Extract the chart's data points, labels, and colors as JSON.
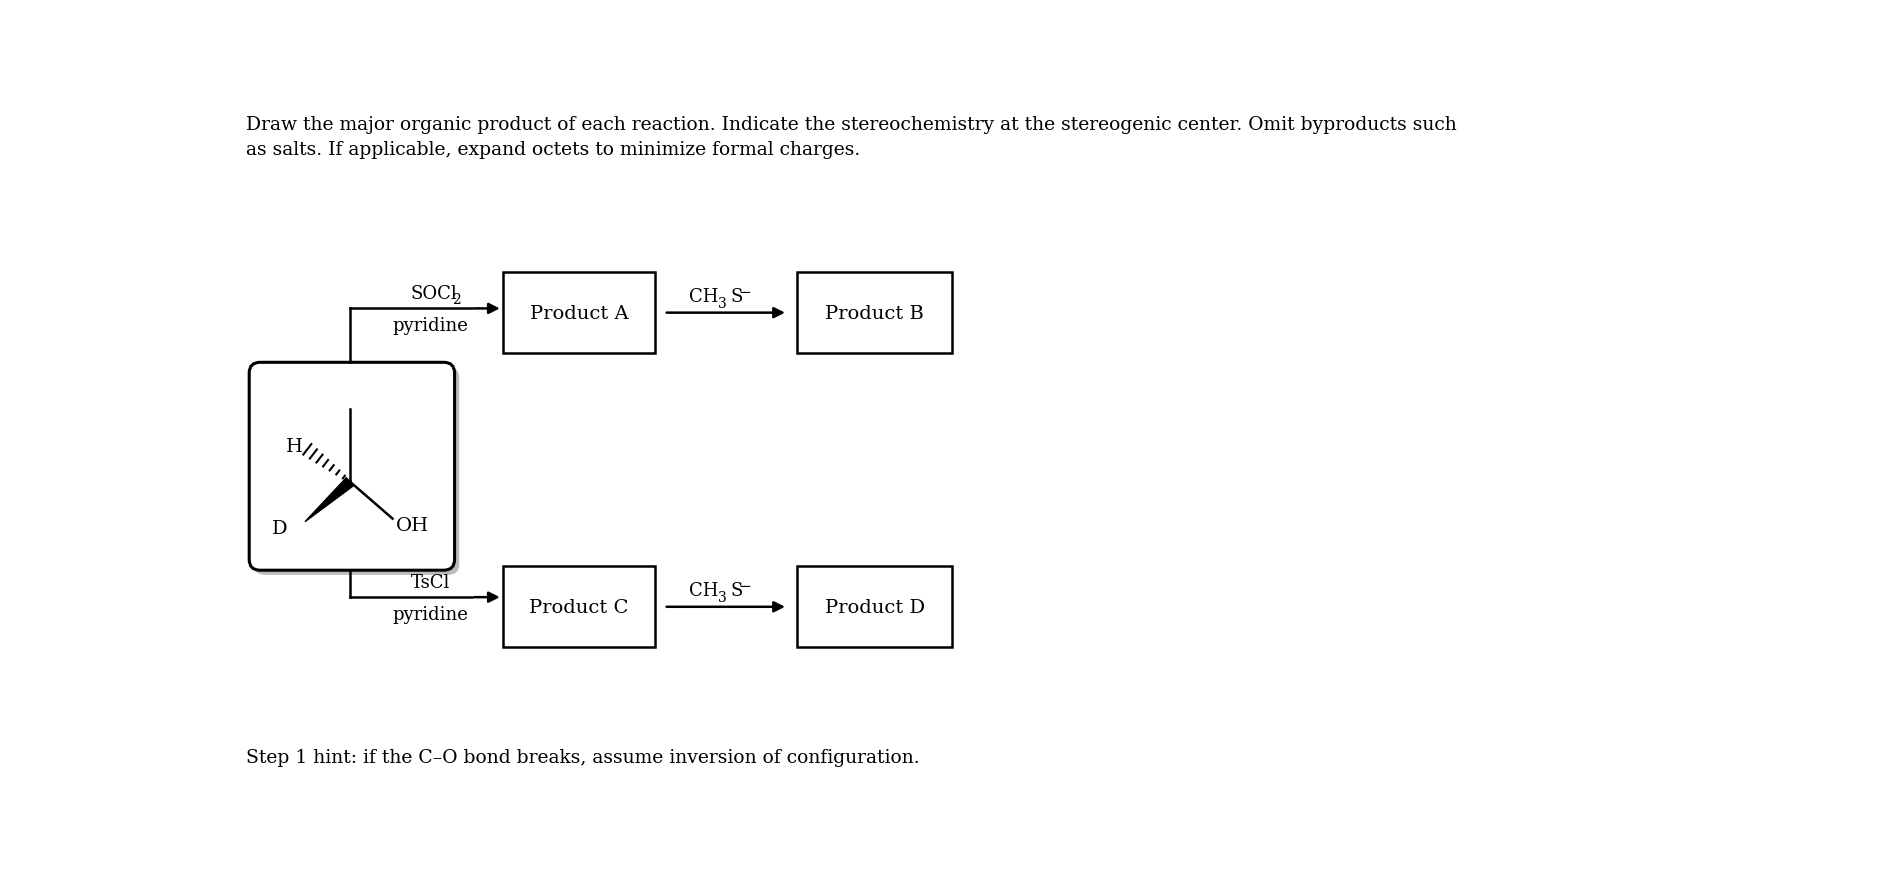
{
  "title_line1": "Draw the major organic product of each reaction. Indicate the stereochemistry at the stereogenic center. Omit byproducts such",
  "title_line2": "as salts. If applicable, expand octets to minimize formal charges.",
  "hint_text": "Step 1 hint: if the C–O bond breaks, assume inversion of configuration.",
  "bg_color": "#ffffff",
  "text_color": "#000000",
  "product_A_label": "Product A",
  "product_B_label": "Product B",
  "product_C_label": "Product C",
  "product_D_label": "Product D",
  "reagent_soci2": "SOCl",
  "reagent_soci2_sub": "2",
  "reagent_tscl": "TsCl",
  "reagent_pyridine": "pyridine",
  "ch3s_label": "CH",
  "ch3s_sub": "3",
  "ch3s_rest": "S",
  "ch3s_sup": "−"
}
